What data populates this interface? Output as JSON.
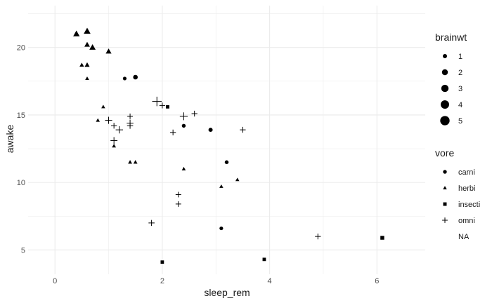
{
  "chart_data": {
    "type": "scatter",
    "xlabel": "sleep_rem",
    "ylabel": "awake",
    "xlim": [
      -0.5,
      6.9
    ],
    "ylim": [
      3.2,
      23.1
    ],
    "x_ticks": [
      0,
      2,
      4,
      6
    ],
    "y_ticks": [
      5,
      10,
      15,
      20
    ],
    "grid": true,
    "legend_position": "right",
    "size_legend": {
      "title": "brainwt",
      "values": [
        1,
        2,
        3,
        4,
        5
      ]
    },
    "shape_legend": {
      "title": "vore",
      "categories": [
        "carni",
        "herbi",
        "insecti",
        "omni",
        "NA"
      ]
    },
    "colors": {
      "marks": "#000000",
      "grid": "#ebebeb",
      "text": "#4d4d4d"
    },
    "series": [
      {
        "name": "carni",
        "points": [
          {
            "x": 1.3,
            "y": 17.7,
            "s": 1.0
          },
          {
            "x": 1.5,
            "y": 17.8,
            "s": 1.6
          },
          {
            "x": 2.4,
            "y": 14.2,
            "s": 1.1
          },
          {
            "x": 2.9,
            "y": 13.9,
            "s": 1.3
          },
          {
            "x": 3.2,
            "y": 11.5,
            "s": 1.1
          },
          {
            "x": 3.1,
            "y": 6.6,
            "s": 1.0
          }
        ]
      },
      {
        "name": "herbi",
        "points": [
          {
            "x": 0.4,
            "y": 21.0,
            "s": 3.0
          },
          {
            "x": 0.6,
            "y": 21.2,
            "s": 3.3
          },
          {
            "x": 0.6,
            "y": 20.2,
            "s": 2.2
          },
          {
            "x": 0.7,
            "y": 20.0,
            "s": 2.8
          },
          {
            "x": 1.0,
            "y": 19.7,
            "s": 2.4
          },
          {
            "x": 0.5,
            "y": 18.7,
            "s": 1.4
          },
          {
            "x": 0.6,
            "y": 18.7,
            "s": 1.8
          },
          {
            "x": 0.6,
            "y": 17.7,
            "s": 1.1
          },
          {
            "x": 0.8,
            "y": 14.6,
            "s": 1.1
          },
          {
            "x": 0.9,
            "y": 15.6,
            "s": 1.1
          },
          {
            "x": 1.1,
            "y": 12.7,
            "s": 1.2
          },
          {
            "x": 1.4,
            "y": 11.5,
            "s": 1.2
          },
          {
            "x": 1.5,
            "y": 11.5,
            "s": 1.2
          },
          {
            "x": 2.4,
            "y": 11.0,
            "s": 1.1
          },
          {
            "x": 3.1,
            "y": 9.7,
            "s": 1.1
          },
          {
            "x": 3.4,
            "y": 10.2,
            "s": 1.1
          }
        ]
      },
      {
        "name": "insecti",
        "points": [
          {
            "x": 2.1,
            "y": 15.6,
            "s": 1.0
          },
          {
            "x": 2.0,
            "y": 4.1,
            "s": 1.0
          },
          {
            "x": 3.9,
            "y": 4.3,
            "s": 1.0
          },
          {
            "x": 6.1,
            "y": 5.9,
            "s": 1.3
          }
        ]
      },
      {
        "name": "omni",
        "points": [
          {
            "x": 1.9,
            "y": 16.0,
            "s": 3.2
          },
          {
            "x": 2.0,
            "y": 15.7,
            "s": 1.2
          },
          {
            "x": 2.4,
            "y": 14.9,
            "s": 2.2
          },
          {
            "x": 2.6,
            "y": 15.1,
            "s": 1.2
          },
          {
            "x": 3.5,
            "y": 13.9,
            "s": 1.2
          },
          {
            "x": 2.2,
            "y": 13.7,
            "s": 1.2
          },
          {
            "x": 1.0,
            "y": 14.6,
            "s": 1.8
          },
          {
            "x": 1.1,
            "y": 14.2,
            "s": 1.2
          },
          {
            "x": 1.2,
            "y": 13.9,
            "s": 1.9
          },
          {
            "x": 1.4,
            "y": 14.4,
            "s": 1.6
          },
          {
            "x": 1.4,
            "y": 14.9,
            "s": 1.1
          },
          {
            "x": 1.4,
            "y": 14.2,
            "s": 1.3
          },
          {
            "x": 1.1,
            "y": 13.1,
            "s": 1.7
          },
          {
            "x": 2.3,
            "y": 9.1,
            "s": 1.1
          },
          {
            "x": 2.3,
            "y": 8.4,
            "s": 1.1
          },
          {
            "x": 1.8,
            "y": 7.0,
            "s": 1.3
          },
          {
            "x": 4.9,
            "y": 6.0,
            "s": 1.2
          }
        ]
      }
    ]
  }
}
